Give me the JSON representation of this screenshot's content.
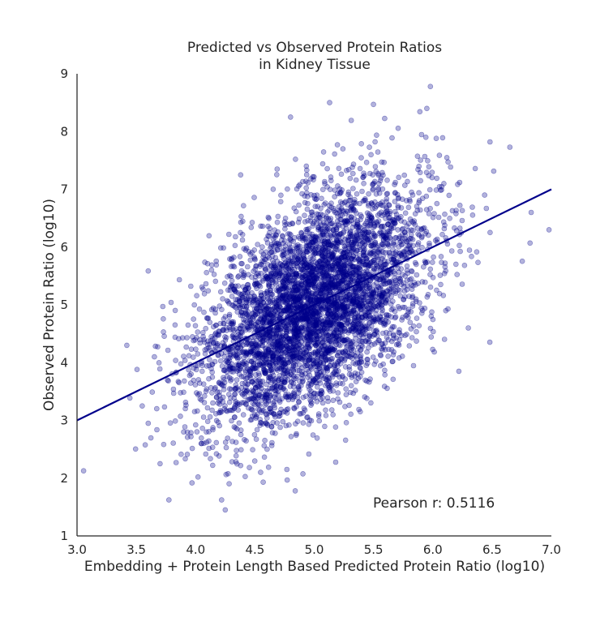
{
  "chart_data": {
    "type": "scatter",
    "title_lines": [
      "Predicted vs Observed Protein Ratios",
      "in Kidney Tissue"
    ],
    "xlabel": "Embedding + Protein Length Based Predicted Protein Ratio (log10)",
    "ylabel": "Observed Protein Ratio (log10)",
    "xlim": [
      3.0,
      7.0
    ],
    "ylim": [
      1,
      9
    ],
    "x_ticks": [
      "3.0",
      "3.5",
      "4.0",
      "4.5",
      "5.0",
      "5.5",
      "6.0",
      "6.5",
      "7.0"
    ],
    "y_ticks": [
      "1",
      "2",
      "3",
      "4",
      "5",
      "6",
      "7",
      "8",
      "9"
    ],
    "grid": false,
    "annotation": "Pearson r: 0.5116",
    "point_color": "#00008b",
    "point_alpha": 0.3,
    "line_color": "#00008b",
    "fit_line": {
      "x": [
        3.0,
        7.0
      ],
      "y": [
        3.0,
        7.0
      ]
    },
    "point_cloud": {
      "x_mean": 5.0,
      "x_sd": 0.47,
      "y_mean": 5.0,
      "y_sd": 1.0,
      "r": 0.5116,
      "approx_count": 5000
    },
    "notable_points": [
      {
        "x": 4.25,
        "y": 1.45
      },
      {
        "x": 3.42,
        "y": 4.3
      },
      {
        "x": 3.7,
        "y": 2.25
      },
      {
        "x": 4.57,
        "y": 1.93
      },
      {
        "x": 4.84,
        "y": 1.78
      },
      {
        "x": 4.02,
        "y": 2.02
      },
      {
        "x": 5.98,
        "y": 8.78
      },
      {
        "x": 5.95,
        "y": 8.4
      },
      {
        "x": 5.5,
        "y": 8.47
      },
      {
        "x": 5.13,
        "y": 8.5
      },
      {
        "x": 4.8,
        "y": 8.25
      },
      {
        "x": 6.65,
        "y": 7.73
      },
      {
        "x": 6.98,
        "y": 6.3
      },
      {
        "x": 6.82,
        "y": 6.07
      },
      {
        "x": 6.83,
        "y": 6.6
      },
      {
        "x": 6.22,
        "y": 3.85
      },
      {
        "x": 6.3,
        "y": 4.6
      },
      {
        "x": 3.6,
        "y": 2.95
      },
      {
        "x": 3.55,
        "y": 3.25
      },
      {
        "x": 4.38,
        "y": 7.25
      }
    ]
  }
}
